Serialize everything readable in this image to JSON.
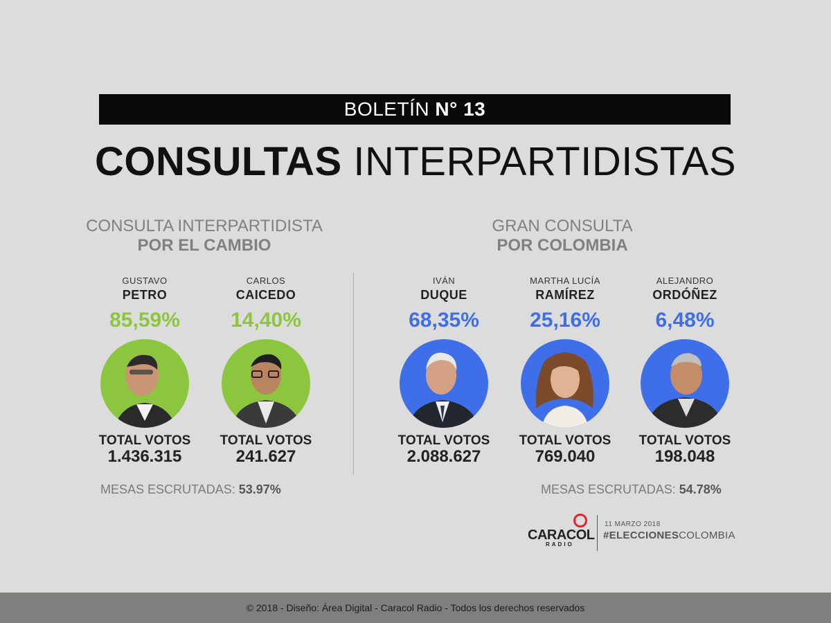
{
  "header": {
    "bulletin_prefix": "BOLETÍN",
    "bulletin_number": "N° 13",
    "title_bold": "CONSULTAS",
    "title_rest": "INTERPARTIDISTAS"
  },
  "left_consulta": {
    "title_line1": "CONSULTA INTERPARTIDISTA",
    "title_line2": "POR EL CAMBIO",
    "accent_color": "#8cc63f",
    "candidates": [
      {
        "first_name": "GUSTAVO",
        "last_name": "PETRO",
        "percent": "85,59%",
        "votes_label": "TOTAL VOTOS",
        "votes": "1.436.315"
      },
      {
        "first_name": "CARLOS",
        "last_name": "CAICEDO",
        "percent": "14,40%",
        "votes_label": "TOTAL VOTOS",
        "votes": "241.627"
      }
    ],
    "mesas_label": "MESAS ESCRUTADAS:",
    "mesas_value": "53.97%"
  },
  "right_consulta": {
    "title_line1": "GRAN CONSULTA",
    "title_line2": "POR COLOMBIA",
    "accent_color": "#3f6fe8",
    "candidates": [
      {
        "first_name": "IVÁN",
        "last_name": "DUQUE",
        "percent": "68,35%",
        "votes_label": "TOTAL VOTOS",
        "votes": "2.088.627"
      },
      {
        "first_name": "MARTHA LUCÍA",
        "last_name": "RAMÍREZ",
        "percent": "25,16%",
        "votes_label": "TOTAL VOTOS",
        "votes": "769.040"
      },
      {
        "first_name": "ALEJANDRO",
        "last_name": "ORDÓÑEZ",
        "percent": "6,48%",
        "votes_label": "TOTAL VOTOS",
        "votes": "198.048"
      }
    ],
    "mesas_label": "MESAS ESCRUTADAS:",
    "mesas_value": "54.78%"
  },
  "brand": {
    "logo_text": "CARACOL",
    "logo_sub": "RADIO",
    "date": "11 MARZO 2018",
    "hashtag_bold": "#ELECCIONES",
    "hashtag_rest": "COLOMBIA"
  },
  "footer": {
    "text": "© 2018 - Diseño: Área Digital - Caracol Radio - Todos los derechos reservados"
  }
}
